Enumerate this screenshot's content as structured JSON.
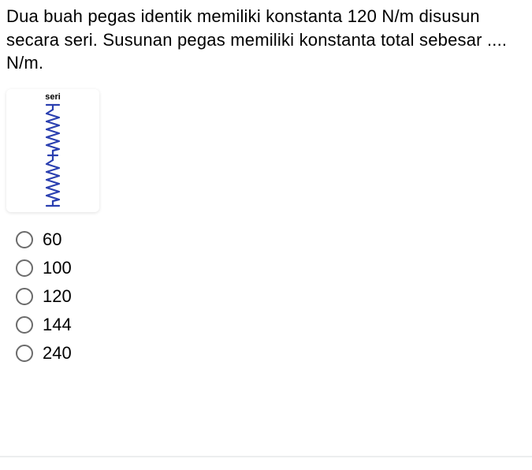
{
  "question": {
    "text": "Dua buah pegas identik memiliki konstanta 120 N/m disusun secara seri. Susunan pegas memiliki konstanta total sebesar .... N/m.",
    "fontsize": 22,
    "color": "#000000"
  },
  "diagram": {
    "label": "seri",
    "label_fontsize": 11,
    "label_weight": "bold",
    "card_bg": "#ffffff",
    "card_shadow": "rgba(0,0,0,0.12)",
    "spring": {
      "stroke": "#2a3fb0",
      "stroke_width": 2.2,
      "coils_per_spring": 5,
      "amplitude": 8,
      "length_per_spring": 50,
      "gap_between": 6,
      "lead_in": 6,
      "cap_width": 16
    }
  },
  "options": [
    {
      "label": "60",
      "selected": false
    },
    {
      "label": "100",
      "selected": false
    },
    {
      "label": "120",
      "selected": false
    },
    {
      "label": "144",
      "selected": false
    },
    {
      "label": "240",
      "selected": false
    }
  ],
  "radio_style": {
    "border_color": "#6b6b6b",
    "size": 22
  },
  "divider_color": "#eceeef"
}
